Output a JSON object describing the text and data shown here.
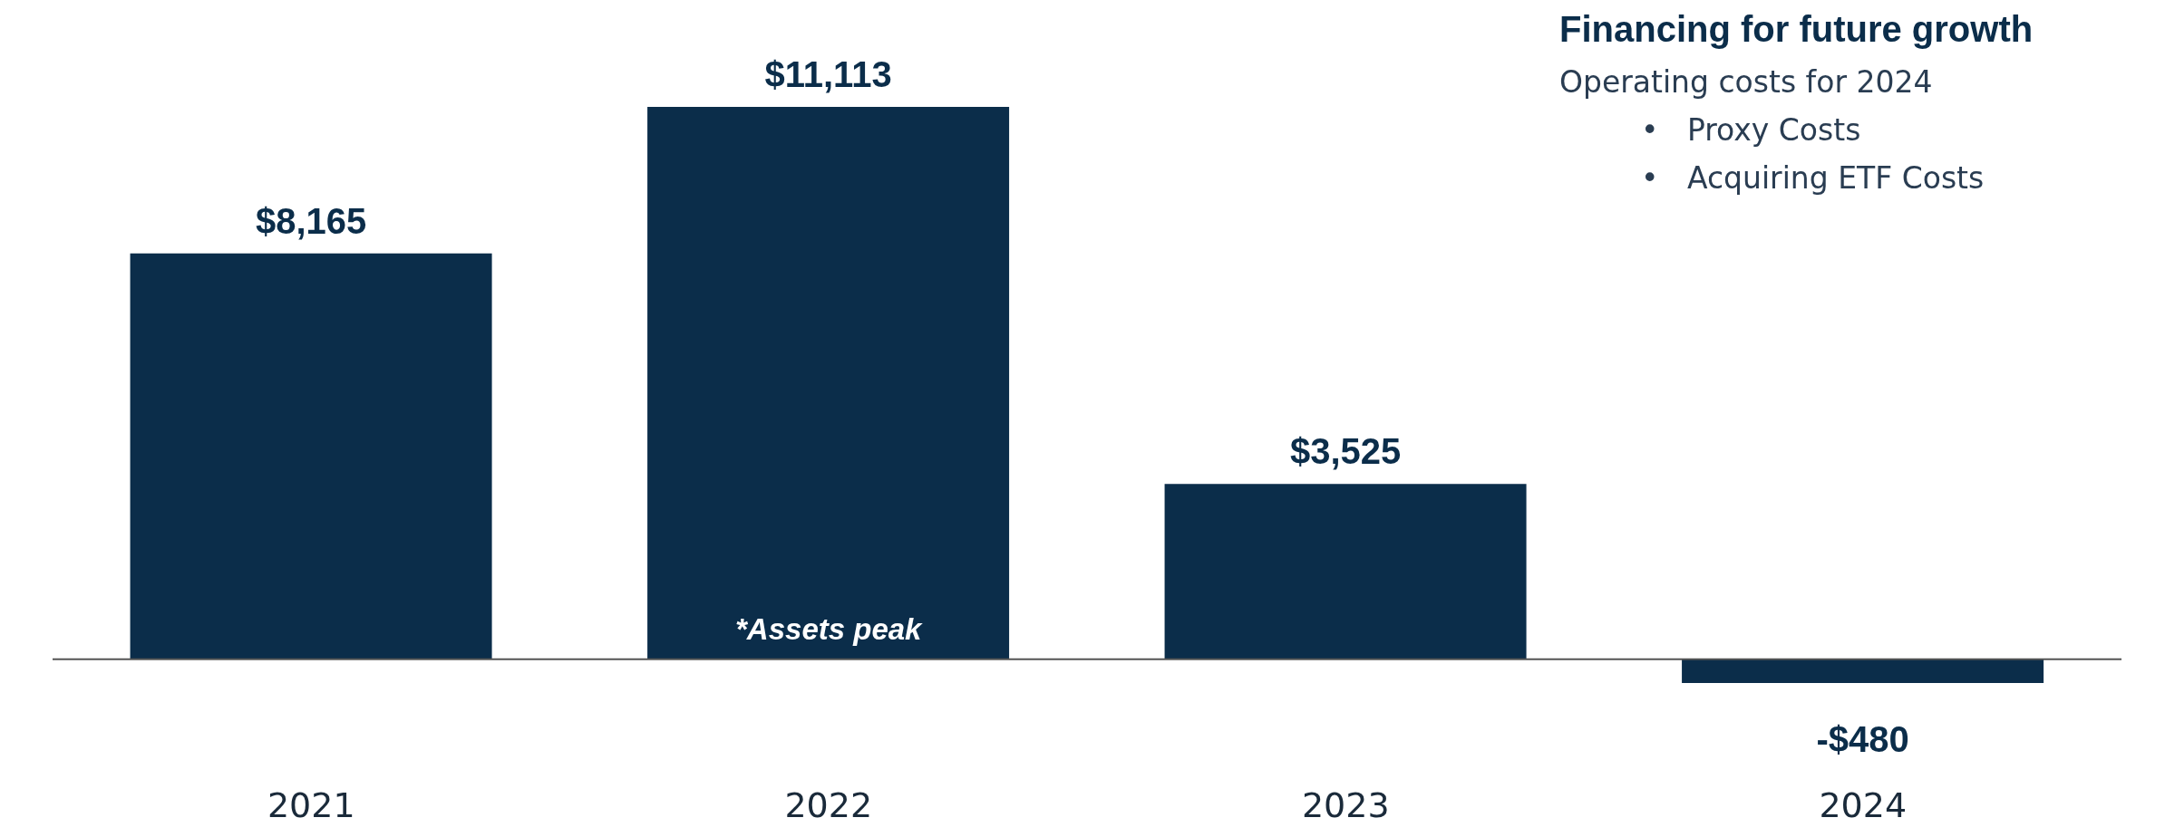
{
  "chart_data": {
    "type": "bar",
    "title": "Financing for future growth",
    "subtitle": "Operating costs for 2024",
    "annotations": [
      "*Assets peak",
      "•   Proxy Costs",
      "•   Acquiring ETF Costs"
    ],
    "categories": [
      "2021",
      "2022",
      "2023",
      "2024"
    ],
    "values": [
      8165,
      11113,
      3525,
      -480
    ],
    "value_labels": [
      "$8,165",
      "$11,113",
      "$3,525",
      "-$480"
    ],
    "color": "#0b2d4a",
    "grid": false,
    "legend": false
  }
}
